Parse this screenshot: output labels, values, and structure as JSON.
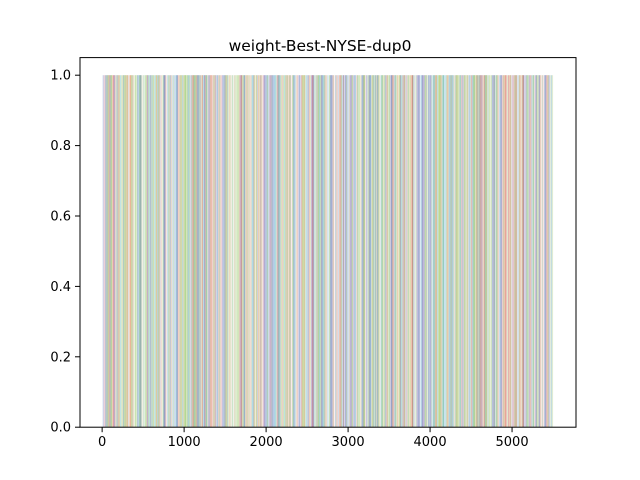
{
  "chart_data": {
    "type": "area",
    "title": "weight-Best-NYSE-dup0",
    "xlabel": "",
    "ylabel": "",
    "xlim": [
      -270,
      5780
    ],
    "ylim": [
      0,
      1.05
    ],
    "x_ticks": [
      0,
      1000,
      2000,
      3000,
      4000,
      5000
    ],
    "x_tick_labels": [
      "0",
      "1000",
      "2000",
      "3000",
      "4000",
      "5000"
    ],
    "y_ticks": [
      0.0,
      0.2,
      0.4,
      0.6,
      0.8,
      1.0
    ],
    "y_tick_labels": [
      "0.0",
      "0.2",
      "0.4",
      "0.6",
      "0.8",
      "1.0"
    ],
    "grid": false,
    "legend": "none",
    "data_x_range": [
      0,
      5500
    ],
    "total_weight": 1.0,
    "series_colors": [
      "#4c72b0",
      "#dd8452",
      "#55a868",
      "#c44e52",
      "#8fb85a",
      "#a1c96a",
      "#64b5cd",
      "#ccb974",
      "#8172b3",
      "#e6a9a9",
      "#9ccf7a",
      "#7fb2d8"
    ],
    "alpha": 0.5
  }
}
